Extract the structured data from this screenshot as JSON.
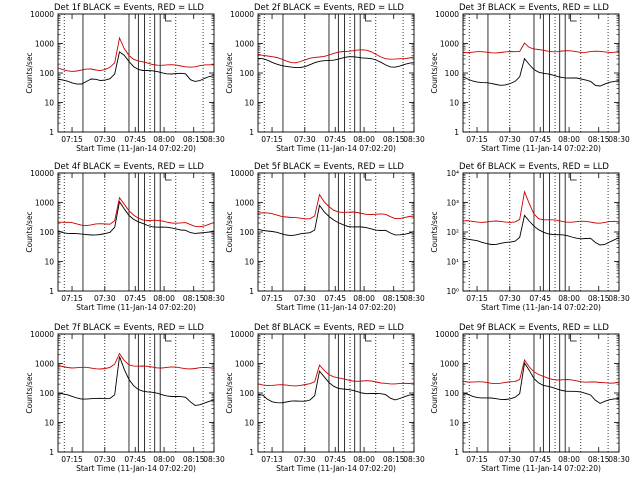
{
  "figure": {
    "colors": {
      "events": "#000000",
      "lld": "#cc0000",
      "axes": "#000000"
    }
  },
  "chart_data": [
    {
      "type": "line",
      "title": "Det 1f BLACK = Events, RED = LLD",
      "xlabel": "Start Time (11-Jan-14 07:02:20)",
      "ylabel": "Counts/sec",
      "x_ticks": [
        "07:15",
        "07:30",
        "07:45",
        "08:00",
        "08:15",
        "08:30"
      ],
      "y_ticks": [
        "1",
        "10",
        "100",
        "1000",
        "10000"
      ],
      "y_scale": "log",
      "ylim": [
        1,
        10000
      ],
      "series": [
        {
          "values": [
            62,
            55,
            50,
            46,
            44,
            45,
            52,
            60,
            58,
            55,
            60,
            68,
            95,
            500,
            380,
            240,
            170,
            140,
            125,
            118,
            112,
            108,
            104,
            100,
            96,
            94,
            92,
            90,
            60,
            55,
            58,
            65,
            72,
            78
          ]
        },
        {
          "values": [
            140,
            130,
            125,
            120,
            118,
            120,
            128,
            135,
            132,
            128,
            135,
            150,
            210,
            1500,
            700,
            420,
            300,
            250,
            225,
            210,
            200,
            195,
            190,
            185,
            180,
            178,
            175,
            172,
            165,
            160,
            168,
            180,
            190,
            200
          ]
        }
      ]
    },
    {
      "type": "line",
      "title": "Det 2f BLACK = Events, RED = LLD",
      "xlabel": "Start Time (11-Jan-14 07:02:20)",
      "ylabel": "Counts/sec",
      "x_ticks": [
        "07:15",
        "07:30",
        "07:45",
        "08:00",
        "08:15",
        "08:30"
      ],
      "y_ticks": [
        "1",
        "10",
        "100",
        "1000",
        "10000"
      ],
      "y_scale": "log",
      "ylim": [
        1,
        10000
      ],
      "series": [
        {
          "values": [
            300,
            290,
            270,
            240,
            210,
            180,
            160,
            150,
            150,
            160,
            175,
            195,
            215,
            235,
            255,
            275,
            290,
            305,
            320,
            335,
            345,
            350,
            345,
            330,
            300,
            260,
            220,
            190,
            170,
            165,
            170,
            185,
            205,
            225
          ]
        },
        {
          "values": [
            430,
            420,
            400,
            360,
            320,
            280,
            250,
            235,
            235,
            250,
            270,
            300,
            330,
            360,
            390,
            420,
            450,
            480,
            520,
            560,
            600,
            620,
            600,
            560,
            500,
            430,
            370,
            320,
            290,
            280,
            290,
            310,
            340,
            370
          ]
        }
      ]
    },
    {
      "type": "line",
      "title": "Det 3f BLACK = Events, RED = LLD",
      "xlabel": "Start Time (11-Jan-14 07:02:20)",
      "ylabel": "Counts/sec",
      "x_ticks": [
        "07:15",
        "07:30",
        "07:45",
        "08:00",
        "08:15",
        "08:30"
      ],
      "y_ticks": [
        "1",
        "10",
        "100",
        "1000",
        "10000"
      ],
      "y_scale": "log",
      "ylim": [
        1,
        10000
      ],
      "series": [
        {
          "values": [
            70,
            62,
            56,
            52,
            48,
            45,
            42,
            40,
            40,
            42,
            45,
            50,
            70,
            300,
            200,
            140,
            110,
            95,
            88,
            82,
            78,
            74,
            70,
            67,
            64,
            60,
            58,
            55,
            40,
            36,
            40,
            46,
            52,
            58
          ]
        },
        {
          "values": [
            520,
            515,
            510,
            505,
            500,
            500,
            505,
            510,
            505,
            500,
            505,
            515,
            560,
            1100,
            760,
            640,
            590,
            570,
            560,
            555,
            550,
            545,
            540,
            540,
            535,
            530,
            528,
            525,
            520,
            518,
            520,
            525,
            530,
            535
          ]
        }
      ]
    },
    {
      "type": "line",
      "title": "Det 4f BLACK = Events, RED = LLD",
      "xlabel": "Start Time (11-Jan-14 07:02:20)",
      "ylabel": "Counts/sec",
      "x_ticks": [
        "07:15",
        "07:30",
        "07:45",
        "08:00",
        "08:15",
        "08:30"
      ],
      "y_ticks": [
        "1",
        "10",
        "100",
        "1000",
        "10000"
      ],
      "y_scale": "log",
      "ylim": [
        1,
        10000
      ],
      "series": [
        {
          "values": [
            110,
            100,
            95,
            90,
            85,
            80,
            80,
            82,
            85,
            84,
            86,
            92,
            140,
            1100,
            650,
            380,
            260,
            210,
            185,
            170,
            160,
            152,
            145,
            138,
            132,
            128,
            124,
            120,
            95,
            85,
            88,
            95,
            105,
            115
          ]
        },
        {
          "values": [
            230,
            215,
            205,
            195,
            185,
            178,
            175,
            178,
            182,
            180,
            182,
            190,
            260,
            1500,
            850,
            500,
            360,
            300,
            270,
            255,
            245,
            235,
            228,
            220,
            214,
            208,
            202,
            198,
            170,
            155,
            160,
            170,
            185,
            200
          ]
        }
      ]
    },
    {
      "type": "line",
      "title": "Det 5f BLACK = Events, RED = LLD",
      "xlabel": "Start Time (11-Jan-14 07:02:20)",
      "ylabel": "Counts/sec",
      "x_ticks": [
        "07:15",
        "07:30",
        "07:45",
        "08:00",
        "08:15",
        "08:30"
      ],
      "y_ticks": [
        "1",
        "10",
        "100",
        "1000",
        "10000"
      ],
      "y_scale": "log",
      "ylim": [
        1,
        10000
      ],
      "series": [
        {
          "values": [
            130,
            120,
            110,
            100,
            92,
            85,
            82,
            80,
            82,
            84,
            86,
            92,
            120,
            850,
            500,
            330,
            240,
            200,
            180,
            165,
            155,
            148,
            140,
            134,
            128,
            122,
            118,
            114,
            88,
            76,
            80,
            88,
            96,
            105
          ]
        },
        {
          "values": [
            440,
            430,
            420,
            410,
            390,
            360,
            330,
            300,
            290,
            285,
            288,
            300,
            360,
            1800,
            1000,
            700,
            560,
            510,
            480,
            460,
            450,
            440,
            430,
            420,
            410,
            400,
            390,
            380,
            330,
            300,
            300,
            310,
            320,
            330
          ]
        }
      ]
    },
    {
      "type": "line",
      "title": "Det 6f BLACK = Events, RED = LLD",
      "xlabel": "Start Time (11-Jan-14 07:02:20)",
      "ylabel": "Counts/sec",
      "x_ticks": [
        "07:15",
        "07:30",
        "07:45",
        "08:00",
        "08:15",
        "08:30"
      ],
      "y_ticks": [
        "10⁰",
        "10¹",
        "10²",
        "10³",
        "10⁴"
      ],
      "y_scale": "log",
      "ylim": [
        1,
        10000
      ],
      "series": [
        {
          "values": [
            65,
            58,
            52,
            48,
            44,
            42,
            40,
            39,
            40,
            42,
            44,
            50,
            70,
            380,
            230,
            150,
            115,
            100,
            92,
            86,
            80,
            76,
            72,
            68,
            65,
            62,
            60,
            58,
            42,
            36,
            40,
            48,
            55,
            62
          ]
        },
        {
          "values": [
            230,
            228,
            226,
            225,
            224,
            223,
            222,
            222,
            223,
            224,
            225,
            228,
            260,
            2200,
            900,
            420,
            300,
            270,
            255,
            245,
            238,
            232,
            228,
            225,
            222,
            220,
            218,
            216,
            212,
            210,
            212,
            215,
            218,
            220
          ]
        }
      ]
    },
    {
      "type": "line",
      "title": "Det 7f BLACK = Events, RED = LLD",
      "xlabel": "Start Time (11-Jan-14 07:02:20)",
      "ylabel": "Counts/sec",
      "x_ticks": [
        "07:15",
        "07:30",
        "07:45",
        "08:00",
        "08:15",
        "08:30"
      ],
      "y_ticks": [
        "1",
        "10",
        "100",
        "1000",
        "10000"
      ],
      "y_scale": "log",
      "ylim": [
        1,
        10000
      ],
      "series": [
        {
          "values": [
            100,
            90,
            82,
            75,
            70,
            66,
            64,
            62,
            62,
            64,
            66,
            70,
            90,
            1700,
            600,
            280,
            180,
            140,
            120,
            108,
            100,
            94,
            88,
            84,
            80,
            76,
            72,
            68,
            50,
            40,
            42,
            46,
            50,
            55
          ]
        },
        {
          "values": [
            800,
            780,
            760,
            750,
            740,
            720,
            700,
            680,
            680,
            690,
            700,
            720,
            900,
            2100,
            1300,
            950,
            850,
            800,
            780,
            770,
            760,
            750,
            740,
            735,
            730,
            720,
            710,
            700,
            690,
            680,
            690,
            700,
            710,
            720
          ]
        }
      ]
    },
    {
      "type": "line",
      "title": "Det 8f BLACK = Events, RED = LLD",
      "xlabel": "Start Time (11-Jan-14 07:02:20)",
      "ylabel": "Counts/sec",
      "x_ticks": [
        "07:13",
        "07:30",
        "07:45",
        "08:00",
        "08:15",
        "08:30"
      ],
      "y_ticks": [
        "1",
        "10",
        "100",
        "1000",
        "10000"
      ],
      "y_scale": "log",
      "ylim": [
        1,
        10000
      ],
      "series": [
        {
          "values": [
            85,
            80,
            60,
            52,
            50,
            48,
            48,
            50,
            52,
            54,
            56,
            60,
            80,
            520,
            340,
            230,
            180,
            150,
            135,
            125,
            118,
            112,
            106,
            100,
            96,
            92,
            90,
            88,
            70,
            62,
            66,
            72,
            80,
            88
          ]
        },
        {
          "values": [
            200,
            195,
            190,
            185,
            182,
            180,
            180,
            182,
            185,
            188,
            190,
            195,
            230,
            900,
            620,
            440,
            350,
            310,
            290,
            280,
            270,
            262,
            255,
            248,
            242,
            236,
            230,
            225,
            205,
            195,
            200,
            210,
            220,
            230
          ]
        }
      ]
    },
    {
      "type": "line",
      "title": "Det 9f BLACK = Events, RED = LLD",
      "xlabel": "Start Time (11-Jan-14 07:02:20)",
      "ylabel": "Counts/sec",
      "x_ticks": [
        "07:15",
        "07:30",
        "07:45",
        "08:00",
        "08:15",
        "08:30"
      ],
      "y_ticks": [
        "1",
        "10",
        "100",
        "1000",
        "10000"
      ],
      "y_scale": "log",
      "ylim": [
        1,
        10000
      ],
      "series": [
        {
          "values": [
            95,
            88,
            80,
            74,
            70,
            66,
            64,
            62,
            62,
            64,
            66,
            70,
            90,
            1000,
            600,
            330,
            230,
            180,
            160,
            145,
            135,
            128,
            120,
            114,
            108,
            102,
            96,
            90,
            60,
            45,
            50,
            56,
            62,
            68
          ]
        },
        {
          "values": [
            260,
            250,
            240,
            232,
            226,
            222,
            220,
            220,
            222,
            224,
            228,
            235,
            290,
            1400,
            800,
            520,
            400,
            350,
            320,
            300,
            290,
            280,
            272,
            265,
            258,
            252,
            246,
            240,
            225,
            215,
            220,
            225,
            232,
            240
          ]
        }
      ]
    }
  ]
}
